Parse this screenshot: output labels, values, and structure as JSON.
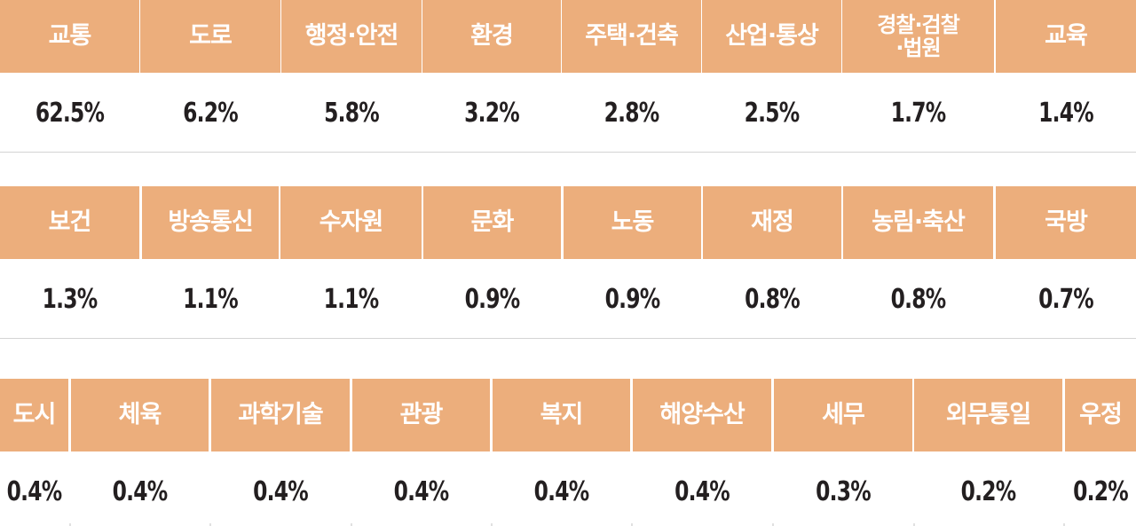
{
  "chart_data": {
    "type": "table",
    "rows": [
      {
        "categories": [
          "교통",
          "도로",
          "행정·안전",
          "환경",
          "주택·건축",
          "산업·통상",
          "경찰·검찰\n·법원",
          "교육"
        ],
        "values": [
          "62.5%",
          "6.2%",
          "5.8%",
          "3.2%",
          "2.8%",
          "2.5%",
          "1.7%",
          "1.4%"
        ]
      },
      {
        "categories": [
          "보건",
          "방송통신",
          "수자원",
          "문화",
          "노동",
          "재정",
          "농림·축산",
          "국방"
        ],
        "values": [
          "1.3%",
          "1.1%",
          "1.1%",
          "0.9%",
          "0.9%",
          "0.8%",
          "0.8%",
          "0.7%"
        ]
      },
      {
        "categories": [
          "도시",
          "체육",
          "과학기술",
          "관광",
          "복지",
          "해양수산",
          "세무",
          "외무통일",
          "우정"
        ],
        "values": [
          "0.4%",
          "0.4%",
          "0.4%",
          "0.4%",
          "0.4%",
          "0.4%",
          "0.3%",
          "0.2%",
          "0.2%"
        ]
      }
    ],
    "colors": {
      "header_bg": "#ecae7c",
      "header_text": "#ffffff",
      "value_text": "#231f20"
    }
  }
}
